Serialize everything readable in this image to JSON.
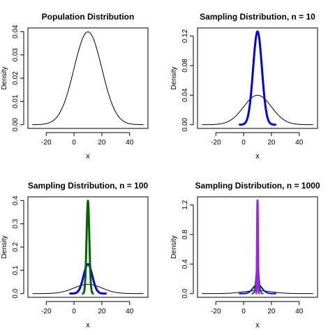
{
  "chart_data": [
    {
      "type": "line",
      "title": "Population Distribution",
      "xlabel": "x",
      "ylabel": "Density",
      "xlim": [
        -30,
        50
      ],
      "ylim": [
        0,
        0.04
      ],
      "xticks": [
        "-20",
        "0",
        "20",
        "40"
      ],
      "xtick_values": [
        -20,
        0,
        20,
        40
      ],
      "yticks": [
        "0.00",
        "0.01",
        "0.02",
        "0.03",
        "0.04"
      ],
      "ytick_values": [
        0,
        0.01,
        0.02,
        0.03,
        0.04
      ],
      "series": [
        {
          "color": "#000000",
          "curve": "normal",
          "mean": 10,
          "sd": 10,
          "xrange": [
            -30,
            50
          ],
          "line_width": 1
        }
      ]
    },
    {
      "type": "line",
      "title": "Sampling Distribution, n = 10",
      "xlabel": "x",
      "ylabel": "Density",
      "xlim": [
        -30,
        50
      ],
      "ylim": [
        0,
        0.126
      ],
      "xticks": [
        "-20",
        "0",
        "20",
        "40"
      ],
      "xtick_values": [
        -20,
        0,
        20,
        40
      ],
      "yticks": [
        "0.00",
        "0.04",
        "0.08",
        "0.12"
      ],
      "ytick_values": [
        0,
        0.04,
        0.08,
        0.12
      ],
      "series": [
        {
          "color": "#000000",
          "curve": "normal",
          "mean": 10,
          "sd": 10,
          "xrange": [
            -30,
            50
          ],
          "line_width": 1
        },
        {
          "color": "#0000dd",
          "curve": "normal",
          "mean": 10,
          "sd": 3.162,
          "xrange": [
            -3.4,
            23.4
          ],
          "line_width": 3
        }
      ]
    },
    {
      "type": "line",
      "title": "Sampling Distribution, n = 100",
      "xlabel": "x",
      "ylabel": "Density",
      "xlim": [
        -30,
        50
      ],
      "ylim": [
        0,
        0.4
      ],
      "xticks": [
        "-20",
        "0",
        "20",
        "40"
      ],
      "xtick_values": [
        -20,
        0,
        20,
        40
      ],
      "yticks": [
        "0.0",
        "0.1",
        "0.2",
        "0.3",
        "0.4"
      ],
      "ytick_values": [
        0,
        0.1,
        0.2,
        0.3,
        0.4
      ],
      "series": [
        {
          "color": "#000000",
          "curve": "normal",
          "mean": 10,
          "sd": 10,
          "xrange": [
            -30,
            50
          ],
          "line_width": 1
        },
        {
          "color": "#0000dd",
          "curve": "normal",
          "mean": 10,
          "sd": 3.162,
          "xrange": [
            -3.4,
            23.4
          ],
          "line_width": 3
        },
        {
          "color": "#006400",
          "curve": "normal",
          "mean": 10,
          "sd": 1,
          "xrange": [
            5.75,
            14.25
          ],
          "line_width": 3
        }
      ]
    },
    {
      "type": "line",
      "title": "Sampling Distribution, n = 1000",
      "xlabel": "x",
      "ylabel": "Density",
      "xlim": [
        -30,
        50
      ],
      "ylim": [
        0,
        1.26
      ],
      "xticks": [
        "-20",
        "0",
        "20",
        "40"
      ],
      "xtick_values": [
        -20,
        0,
        20,
        40
      ],
      "yticks": [
        "0.0",
        "0.4",
        "0.8",
        "1.2"
      ],
      "ytick_values": [
        0,
        0.4,
        0.8,
        1.2
      ],
      "series": [
        {
          "color": "#000000",
          "curve": "normal",
          "mean": 10,
          "sd": 10,
          "xrange": [
            -30,
            50
          ],
          "line_width": 1
        },
        {
          "color": "#0000dd",
          "curve": "normal",
          "mean": 10,
          "sd": 3.162,
          "xrange": [
            -3.4,
            23.4
          ],
          "line_width": 2
        },
        {
          "color": "#006400",
          "curve": "normal",
          "mean": 10,
          "sd": 1,
          "xrange": [
            5.75,
            14.25
          ],
          "line_width": 2
        },
        {
          "color": "#a020f0",
          "curve": "normal",
          "mean": 10,
          "sd": 0.3162,
          "xrange": [
            8.65,
            11.35
          ],
          "line_width": 3
        }
      ]
    }
  ]
}
